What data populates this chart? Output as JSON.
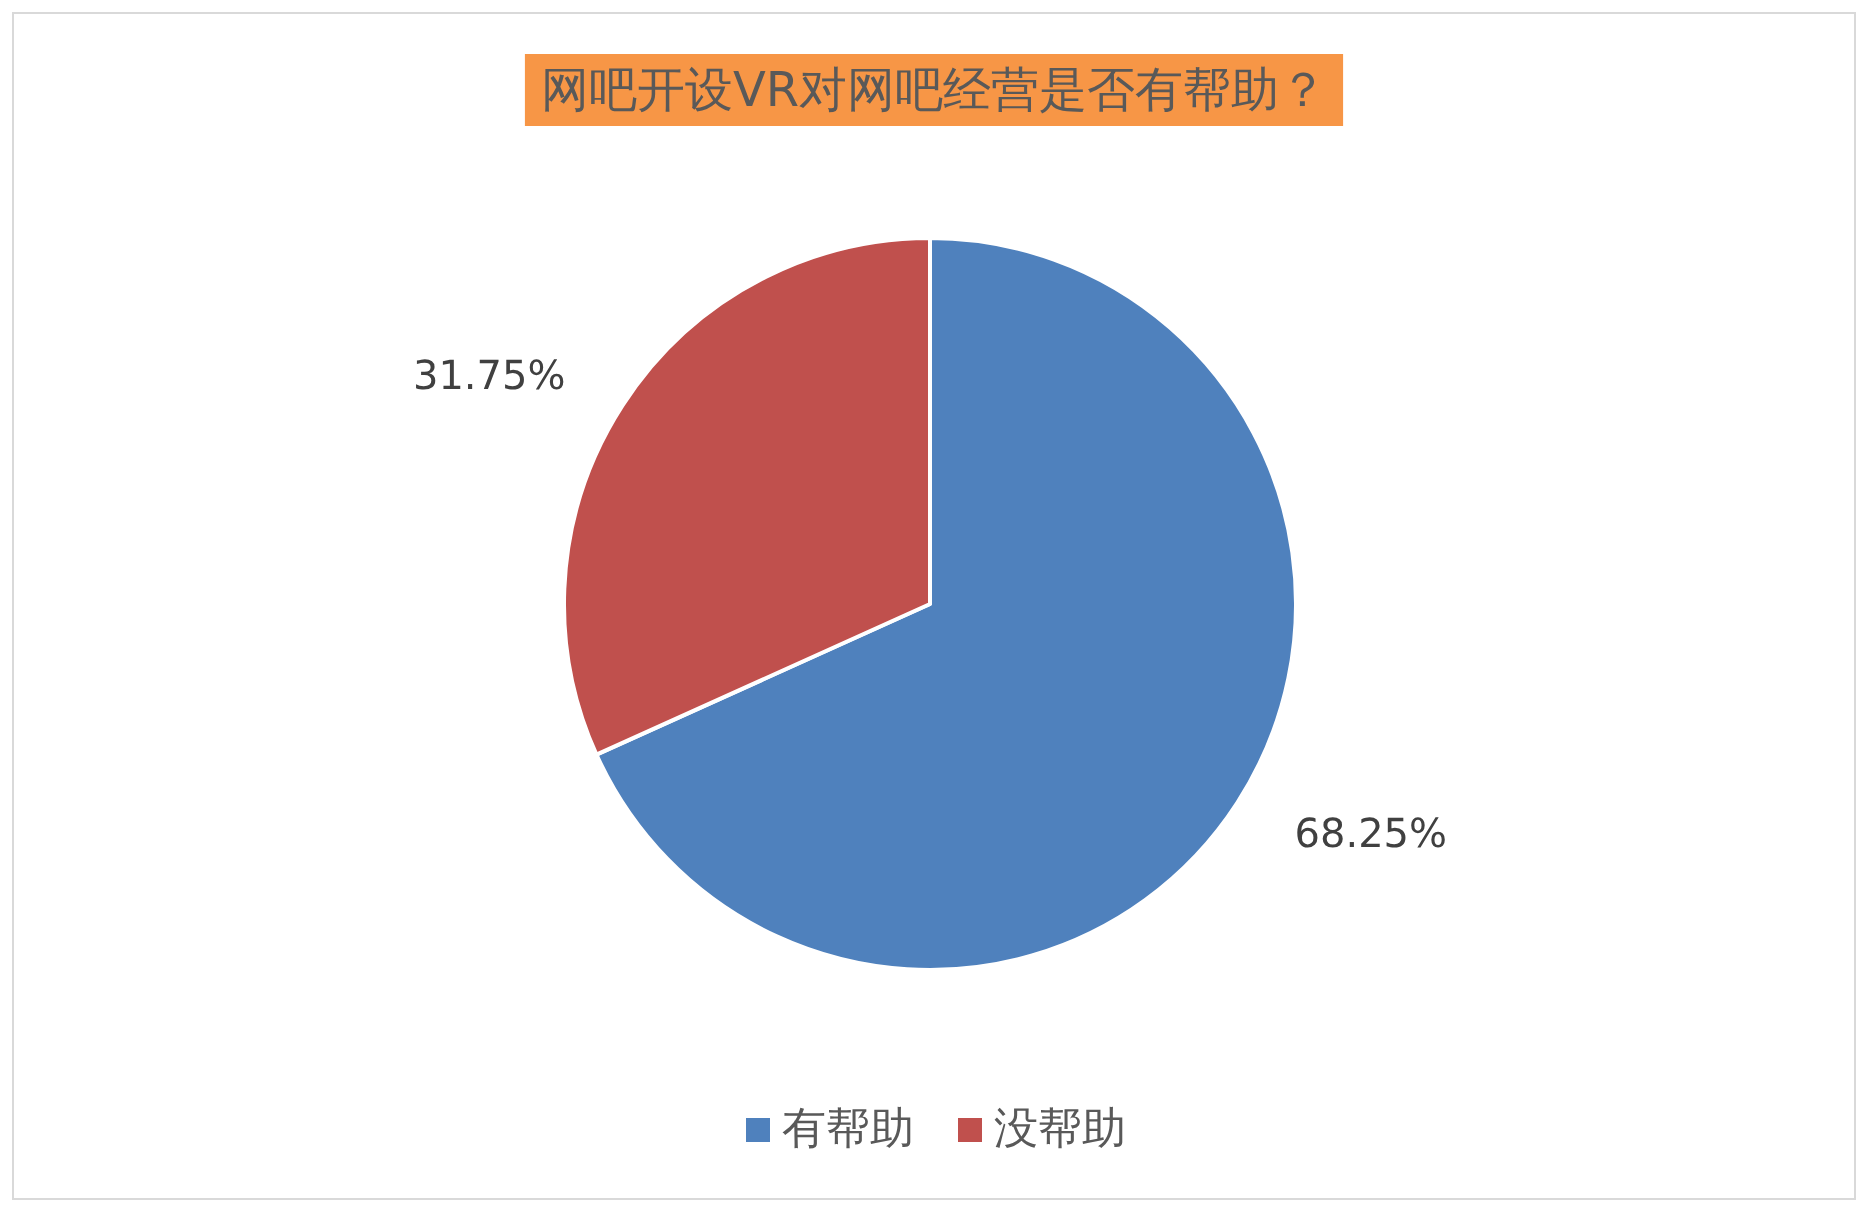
{
  "chart_data": {
    "type": "pie",
    "title": "网吧开设VR对网吧经营是否有帮助？",
    "categories": [
      "有帮助",
      "没帮助"
    ],
    "values": [
      68.25,
      31.75
    ],
    "colors": [
      "#4f81bd",
      "#c0504d"
    ],
    "value_labels": [
      "68.25%",
      "31.75%"
    ],
    "legend": "bottom"
  }
}
